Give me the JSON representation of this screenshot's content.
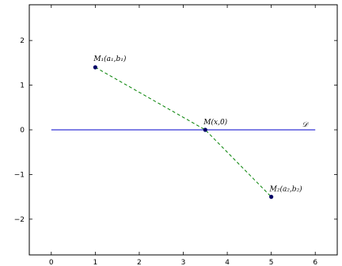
{
  "chart_data": {
    "type": "line",
    "xlim": [
      -0.5,
      6.5
    ],
    "ylim": [
      -2.8,
      2.8
    ],
    "x_ticks": [
      0,
      1,
      2,
      3,
      4,
      5,
      6
    ],
    "y_ticks": [
      -2,
      -1,
      0,
      1,
      2
    ],
    "grid": false,
    "series": [
      {
        "name": "D",
        "style": "solid",
        "color": "#0000cc",
        "x": [
          0,
          6
        ],
        "y": [
          0,
          0
        ]
      },
      {
        "name": "",
        "style": "dashed",
        "color": "#008000",
        "x": [
          1,
          3.5,
          5
        ],
        "y": [
          1.4,
          0,
          -1.5
        ]
      }
    ],
    "points": [
      {
        "x": 1,
        "y": 1.4,
        "color": "#000066"
      },
      {
        "x": 3.5,
        "y": 0,
        "color": "#000066"
      },
      {
        "x": 5,
        "y": -1.5,
        "color": "#000066"
      }
    ],
    "annotations": [
      {
        "text": "M₁(a₁,b₁)",
        "x": 1,
        "y": 1.4
      },
      {
        "text": "M(x,0)",
        "x": 3.5,
        "y": 0
      },
      {
        "text": "M₂(a₂,b₂)",
        "x": 5,
        "y": -1.5
      },
      {
        "text": "𝒟",
        "x": 5.7,
        "y": 0
      }
    ]
  }
}
